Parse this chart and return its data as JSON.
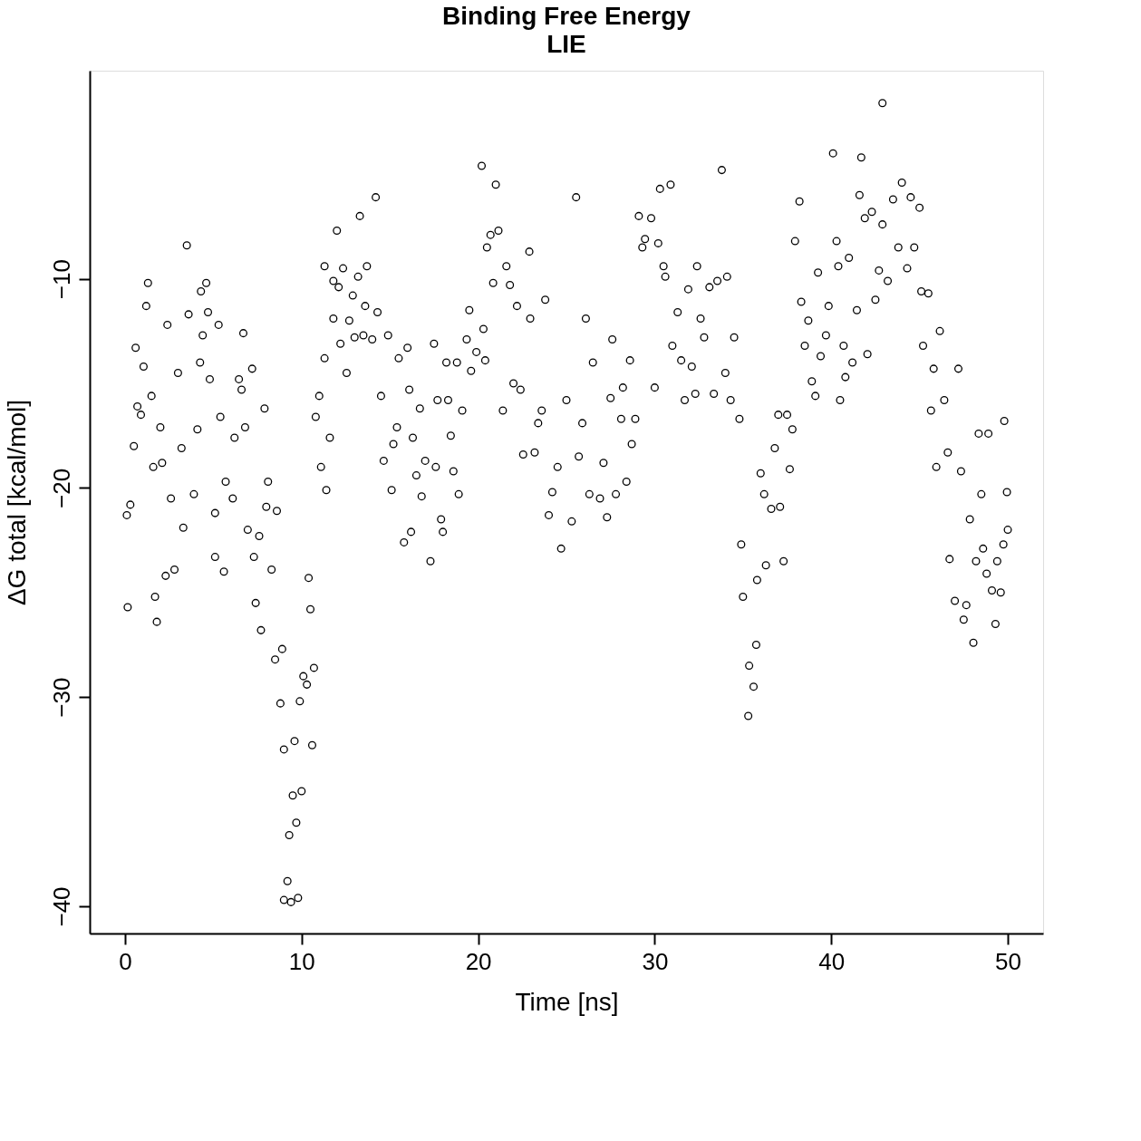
{
  "chart_data": {
    "type": "scatter",
    "title": "Binding Free Energy",
    "subtitle": "LIE",
    "xlabel": "Time [ns]",
    "ylabel": "ΔG total [kcal/mol]",
    "xlim": [
      -2,
      52
    ],
    "ylim": [
      -41.3,
      -0.05
    ],
    "xticks": [
      0,
      10,
      20,
      30,
      40,
      50
    ],
    "yticks": [
      -40,
      -30,
      -20,
      -10
    ],
    "grid": false,
    "legend": false,
    "marker": "circle",
    "series": [
      {
        "color": "#000000",
        "x": [
          0.1,
          0.15,
          0.3,
          0.5,
          0.6,
          0.7,
          0.9,
          1.05,
          1.3,
          1.2,
          1.5,
          1.6,
          1.7,
          1.8,
          2.0,
          2.1,
          2.4,
          2.3,
          2.6,
          2.8,
          3.0,
          3.2,
          3.3,
          3.5,
          3.6,
          3.9,
          4.1,
          4.25,
          4.3,
          4.4,
          4.6,
          4.7,
          4.8,
          5.1,
          5.1,
          5.3,
          5.4,
          5.6,
          5.7,
          6.1,
          6.2,
          6.45,
          6.6,
          6.7,
          6.8,
          6.95,
          7.2,
          7.3,
          7.4,
          7.6,
          7.7,
          7.9,
          8.0,
          8.1,
          8.3,
          8.5,
          8.6,
          8.8,
          8.9,
          9.0,
          9.0,
          9.2,
          9.3,
          9.4,
          9.5,
          9.6,
          9.7,
          9.8,
          9.9,
          10.0,
          10.1,
          10.3,
          10.4,
          10.5,
          10.6,
          10.7,
          10.8,
          11.0,
          11.1,
          11.3,
          11.3,
          11.4,
          11.6,
          11.8,
          11.8,
          12.0,
          12.1,
          12.2,
          12.35,
          12.55,
          12.7,
          12.9,
          13.0,
          13.2,
          13.3,
          13.5,
          13.6,
          13.7,
          14.0,
          14.2,
          14.3,
          14.5,
          14.65,
          14.9,
          15.1,
          15.2,
          15.4,
          15.5,
          15.8,
          16.0,
          16.1,
          16.2,
          16.3,
          16.5,
          16.7,
          16.8,
          17.0,
          17.3,
          17.5,
          17.6,
          17.7,
          17.9,
          18.0,
          18.2,
          18.3,
          18.45,
          18.6,
          18.8,
          18.9,
          19.1,
          19.35,
          19.5,
          19.6,
          19.9,
          20.2,
          20.3,
          20.4,
          20.5,
          20.7,
          20.85,
          21.0,
          21.15,
          21.4,
          21.6,
          21.8,
          22.0,
          22.2,
          22.4,
          22.55,
          22.9,
          22.95,
          23.2,
          23.4,
          23.6,
          23.8,
          24.0,
          24.2,
          24.5,
          24.7,
          25.0,
          25.3,
          25.55,
          25.7,
          25.9,
          26.1,
          26.3,
          26.5,
          26.9,
          27.1,
          27.3,
          27.5,
          27.6,
          27.8,
          28.1,
          28.2,
          28.4,
          28.6,
          28.7,
          28.9,
          29.1,
          29.3,
          29.45,
          29.8,
          30.0,
          30.2,
          30.3,
          30.5,
          30.6,
          30.9,
          31.0,
          31.3,
          31.5,
          31.7,
          31.9,
          32.1,
          32.3,
          32.4,
          32.6,
          32.8,
          33.1,
          33.35,
          33.55,
          33.8,
          34.0,
          34.1,
          34.3,
          34.5,
          34.8,
          34.9,
          35.0,
          35.3,
          35.35,
          35.6,
          35.75,
          35.8,
          36.0,
          36.2,
          36.3,
          36.6,
          36.8,
          37.0,
          37.1,
          37.3,
          37.5,
          37.65,
          37.8,
          37.95,
          38.2,
          38.3,
          38.5,
          38.7,
          38.9,
          39.1,
          39.25,
          39.4,
          39.7,
          39.85,
          40.1,
          40.3,
          40.4,
          40.5,
          40.7,
          40.8,
          41.0,
          41.2,
          41.45,
          41.6,
          41.7,
          41.9,
          42.05,
          42.3,
          42.5,
          42.7,
          42.9,
          42.9,
          43.2,
          43.5,
          43.8,
          44.0,
          44.3,
          44.5,
          44.7,
          45.0,
          45.1,
          45.2,
          45.5,
          45.65,
          45.8,
          45.95,
          46.15,
          46.4,
          46.6,
          46.7,
          47.0,
          47.2,
          47.35,
          47.5,
          47.65,
          47.85,
          48.05,
          48.2,
          48.35,
          48.5,
          48.6,
          48.8,
          48.9,
          49.1,
          49.3,
          49.4,
          49.6,
          49.75,
          49.8,
          49.95,
          50.0
        ],
        "values": [
          -21.3,
          -25.7,
          -20.8,
          -18.0,
          -13.3,
          -16.1,
          -16.5,
          -14.2,
          -10.2,
          -11.3,
          -15.6,
          -19.0,
          -25.2,
          -26.4,
          -17.1,
          -18.8,
          -12.2,
          -24.2,
          -20.5,
          -23.9,
          -14.5,
          -18.1,
          -21.9,
          -8.4,
          -11.7,
          -20.3,
          -17.2,
          -14.0,
          -10.6,
          -12.7,
          -10.2,
          -11.6,
          -14.8,
          -21.2,
          -23.3,
          -12.2,
          -16.6,
          -24.0,
          -19.7,
          -20.5,
          -17.6,
          -14.8,
          -15.3,
          -12.6,
          -17.1,
          -22.0,
          -14.3,
          -23.3,
          -25.5,
          -22.3,
          -26.8,
          -16.2,
          -20.9,
          -19.7,
          -23.9,
          -28.2,
          -21.1,
          -30.3,
          -27.7,
          -32.5,
          -39.7,
          -38.8,
          -36.6,
          -39.8,
          -34.7,
          -32.1,
          -36.0,
          -39.6,
          -30.2,
          -34.5,
          -29.0,
          -29.4,
          -24.3,
          -25.8,
          -32.3,
          -28.6,
          -16.6,
          -15.6,
          -19.0,
          -9.4,
          -13.8,
          -20.1,
          -17.6,
          -10.1,
          -11.9,
          -7.7,
          -10.4,
          -13.1,
          -9.5,
          -14.5,
          -12.0,
          -10.8,
          -12.8,
          -9.9,
          -7.0,
          -12.7,
          -11.3,
          -9.4,
          -12.9,
          -6.1,
          -11.6,
          -15.6,
          -18.7,
          -12.7,
          -20.1,
          -17.9,
          -17.1,
          -13.8,
          -22.6,
          -13.3,
          -15.3,
          -22.1,
          -17.6,
          -19.4,
          -16.2,
          -20.4,
          -18.7,
          -23.5,
          -13.1,
          -19.0,
          -15.8,
          -21.5,
          -22.1,
          -14.0,
          -15.8,
          -17.5,
          -19.2,
          -14.0,
          -20.3,
          -16.3,
          -12.9,
          -11.5,
          -14.4,
          -13.5,
          -4.6,
          -12.4,
          -13.9,
          -8.5,
          -7.9,
          -10.2,
          -5.5,
          -7.7,
          -16.3,
          -9.4,
          -10.3,
          -15.0,
          -11.3,
          -15.3,
          -18.4,
          -8.7,
          -11.9,
          -18.3,
          -16.9,
          -16.3,
          -11.0,
          -21.3,
          -20.2,
          -19.0,
          -22.9,
          -15.8,
          -21.6,
          -6.1,
          -18.5,
          -16.9,
          -11.9,
          -20.3,
          -14.0,
          -20.5,
          -18.8,
          -21.4,
          -15.7,
          -12.9,
          -20.3,
          -16.7,
          -15.2,
          -19.7,
          -13.9,
          -17.9,
          -16.7,
          -7.0,
          -8.5,
          -8.1,
          -7.1,
          -15.2,
          -8.3,
          -5.7,
          -9.4,
          -9.9,
          -5.5,
          -13.2,
          -11.6,
          -13.9,
          -15.8,
          -10.5,
          -14.2,
          -15.5,
          -9.4,
          -11.9,
          -12.8,
          -10.4,
          -15.5,
          -10.1,
          -4.8,
          -14.5,
          -9.9,
          -15.8,
          -12.8,
          -16.7,
          -22.7,
          -25.2,
          -30.9,
          -28.5,
          -29.5,
          -27.5,
          -24.4,
          -19.3,
          -20.3,
          -23.7,
          -21.0,
          -18.1,
          -16.5,
          -20.9,
          -23.5,
          -16.5,
          -19.1,
          -17.2,
          -8.2,
          -6.3,
          -11.1,
          -13.2,
          -12.0,
          -14.9,
          -15.6,
          -9.7,
          -13.7,
          -12.7,
          -11.3,
          -4.0,
          -8.2,
          -9.4,
          -15.8,
          -13.2,
          -14.7,
          -9.0,
          -14.0,
          -11.5,
          -6.0,
          -4.2,
          -7.1,
          -13.6,
          -6.8,
          -11.0,
          -9.6,
          -1.6,
          -7.4,
          -10.1,
          -6.2,
          -8.5,
          -5.4,
          -9.5,
          -6.1,
          -8.5,
          -6.6,
          -10.6,
          -13.2,
          -10.7,
          -16.3,
          -14.3,
          -19.0,
          -12.5,
          -15.8,
          -18.3,
          -23.4,
          -25.4,
          -14.3,
          -19.2,
          -26.3,
          -25.6,
          -21.5,
          -27.4,
          -23.5,
          -17.4,
          -20.3,
          -22.9,
          -24.1,
          -17.4,
          -24.9,
          -26.5,
          -23.5,
          -25.0,
          -22.7,
          -16.8,
          -20.2,
          -22.0
        ]
      }
    ]
  }
}
